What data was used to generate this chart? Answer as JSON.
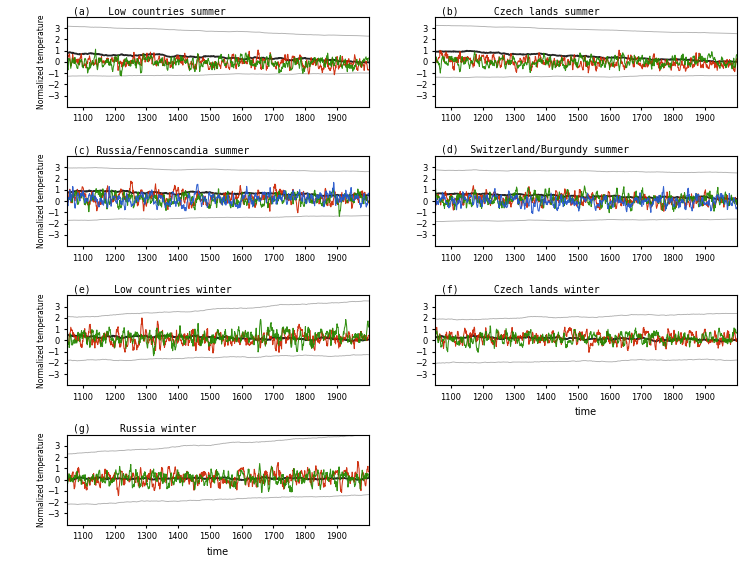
{
  "titles_left": [
    "(a)  Low countries summer",
    "(c) Russia/Fennoscandia summer",
    "(e)   Low countries winter",
    "(g)    Russia winter"
  ],
  "titles_right": [
    "(b)     Czech lands summer",
    "(d)  Switzerland/Burgundy summer",
    "(f)      Czech lands winter"
  ],
  "xlabel": "time",
  "ylabel": "Normalized temperature",
  "xlim": [
    1050,
    2000
  ],
  "ylim": [
    -4,
    4
  ],
  "xticks": [
    1100,
    1200,
    1300,
    1400,
    1500,
    1600,
    1700,
    1800,
    1900
  ],
  "yticks": [
    -3,
    -2,
    -1,
    0,
    1,
    2,
    3
  ],
  "colors": {
    "black": "#111111",
    "red": "#CC2200",
    "green": "#228800",
    "gray": "#AAAAAA",
    "blue": "#2255CC"
  },
  "background": "#FFFFFF"
}
